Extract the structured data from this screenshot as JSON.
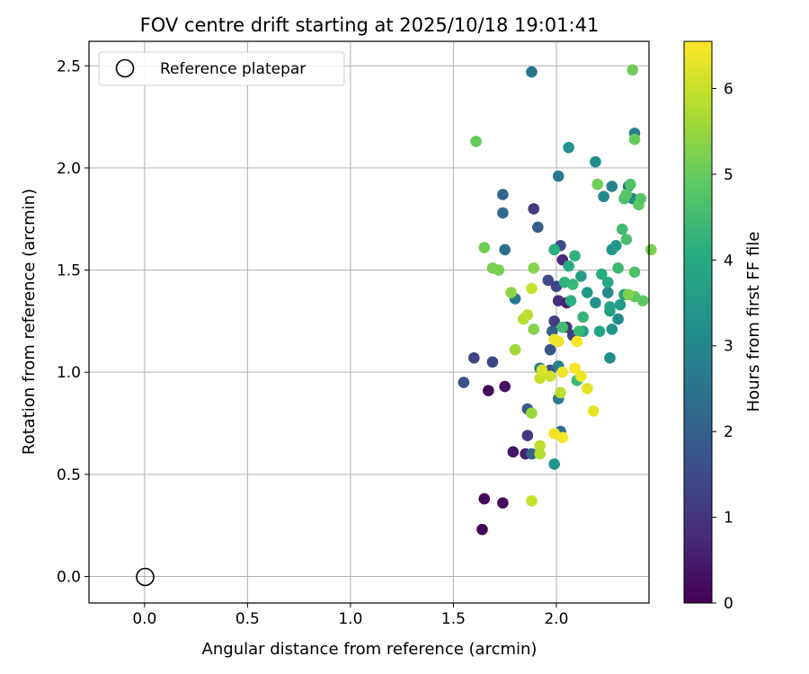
{
  "chart_data": {
    "type": "scatter",
    "title": "FOV centre drift starting at 2025/10/18 19:01:41",
    "xlabel": "Angular distance from reference (arcmin)",
    "ylabel": "Rotation from reference (arcmin)",
    "xlim": [
      -0.27,
      2.45
    ],
    "ylim": [
      -0.13,
      2.62
    ],
    "xticks": [
      0.0,
      0.5,
      1.0,
      1.5,
      2.0
    ],
    "xtick_labels": [
      "0.0",
      "0.5",
      "1.0",
      "1.5",
      "2.0"
    ],
    "yticks": [
      0.0,
      0.5,
      1.0,
      1.5,
      2.0,
      2.5
    ],
    "ytick_labels": [
      "0.0",
      "0.5",
      "1.0",
      "1.5",
      "2.0",
      "2.5"
    ],
    "grid": true,
    "legend": {
      "label": "Reference platepar",
      "location": "top-left",
      "marker": "open-circle"
    },
    "reference_point": {
      "x": 0.0,
      "y": 0.0
    },
    "colorbar": {
      "label": "Hours from first FF file",
      "min": 0,
      "max": 6.55,
      "colormap": "viridis",
      "ticks": [
        0,
        1,
        2,
        3,
        4,
        5,
        6
      ],
      "tick_labels": [
        "0",
        "1",
        "2",
        "3",
        "4",
        "5",
        "6"
      ]
    },
    "points": [
      {
        "x": 1.64,
        "y": 0.23,
        "t": 0.05
      },
      {
        "x": 1.65,
        "y": 0.38,
        "t": 0.15
      },
      {
        "x": 1.74,
        "y": 0.36,
        "t": 0.25
      },
      {
        "x": 1.67,
        "y": 0.91,
        "t": 0.2
      },
      {
        "x": 1.75,
        "y": 0.93,
        "t": 0.3
      },
      {
        "x": 1.79,
        "y": 0.61,
        "t": 0.4
      },
      {
        "x": 1.85,
        "y": 0.6,
        "t": 0.55
      },
      {
        "x": 1.86,
        "y": 0.69,
        "t": 1.0
      },
      {
        "x": 1.55,
        "y": 0.95,
        "t": 1.6
      },
      {
        "x": 1.6,
        "y": 1.07,
        "t": 1.3
      },
      {
        "x": 1.69,
        "y": 1.05,
        "t": 1.4
      },
      {
        "x": 1.88,
        "y": 0.6,
        "t": 2.1
      },
      {
        "x": 1.86,
        "y": 0.82,
        "t": 1.8
      },
      {
        "x": 1.89,
        "y": 1.8,
        "t": 1.1
      },
      {
        "x": 1.91,
        "y": 1.71,
        "t": 1.9
      },
      {
        "x": 1.74,
        "y": 1.87,
        "t": 2.2
      },
      {
        "x": 1.74,
        "y": 1.78,
        "t": 2.3
      },
      {
        "x": 1.75,
        "y": 1.6,
        "t": 2.4
      },
      {
        "x": 1.88,
        "y": 2.47,
        "t": 2.5
      },
      {
        "x": 1.8,
        "y": 1.36,
        "t": 2.6
      },
      {
        "x": 1.96,
        "y": 1.45,
        "t": 1.5
      },
      {
        "x": 1.97,
        "y": 1.11,
        "t": 1.7
      },
      {
        "x": 1.98,
        "y": 1.2,
        "t": 2.0
      },
      {
        "x": 1.99,
        "y": 1.25,
        "t": 1.2
      },
      {
        "x": 1.97,
        "y": 1.01,
        "t": 1.6
      },
      {
        "x": 2.0,
        "y": 1.42,
        "t": 1.3
      },
      {
        "x": 2.01,
        "y": 1.35,
        "t": 0.9
      },
      {
        "x": 2.03,
        "y": 1.55,
        "t": 0.8
      },
      {
        "x": 2.02,
        "y": 1.62,
        "t": 1.5
      },
      {
        "x": 2.05,
        "y": 1.34,
        "t": 0.6
      },
      {
        "x": 2.05,
        "y": 1.22,
        "t": 1.0
      },
      {
        "x": 2.08,
        "y": 1.18,
        "t": 1.2
      },
      {
        "x": 2.01,
        "y": 1.96,
        "t": 2.6
      },
      {
        "x": 2.06,
        "y": 2.1,
        "t": 3.3
      },
      {
        "x": 2.01,
        "y": 0.87,
        "t": 2.8
      },
      {
        "x": 2.01,
        "y": 1.03,
        "t": 2.9
      },
      {
        "x": 2.02,
        "y": 0.71,
        "t": 2.3
      },
      {
        "x": 1.99,
        "y": 0.55,
        "t": 3.4
      },
      {
        "x": 1.92,
        "y": 1.02,
        "t": 2.8
      },
      {
        "x": 2.19,
        "y": 2.03,
        "t": 3.2
      },
      {
        "x": 2.23,
        "y": 1.86,
        "t": 3.0
      },
      {
        "x": 2.27,
        "y": 1.91,
        "t": 2.9
      },
      {
        "x": 2.35,
        "y": 1.91,
        "t": 2.7
      },
      {
        "x": 2.38,
        "y": 2.17,
        "t": 2.8
      },
      {
        "x": 2.37,
        "y": 1.85,
        "t": 3.0
      },
      {
        "x": 2.19,
        "y": 1.34,
        "t": 3.3
      },
      {
        "x": 2.25,
        "y": 1.39,
        "t": 3.1
      },
      {
        "x": 2.26,
        "y": 1.07,
        "t": 3.2
      },
      {
        "x": 2.27,
        "y": 1.21,
        "t": 3.4
      },
      {
        "x": 2.3,
        "y": 1.26,
        "t": 3.2
      },
      {
        "x": 2.27,
        "y": 1.6,
        "t": 3.3
      },
      {
        "x": 2.12,
        "y": 1.47,
        "t": 3.6
      },
      {
        "x": 2.15,
        "y": 1.39,
        "t": 3.5
      },
      {
        "x": 2.26,
        "y": 1.3,
        "t": 3.6
      },
      {
        "x": 2.29,
        "y": 1.62,
        "t": 3.5
      },
      {
        "x": 2.31,
        "y": 1.33,
        "t": 3.6
      },
      {
        "x": 2.33,
        "y": 1.38,
        "t": 3.7
      },
      {
        "x": 2.13,
        "y": 1.2,
        "t": 3.7
      },
      {
        "x": 2.21,
        "y": 1.2,
        "t": 3.8
      },
      {
        "x": 2.25,
        "y": 1.44,
        "t": 3.9
      },
      {
        "x": 2.26,
        "y": 1.32,
        "t": 3.8
      },
      {
        "x": 2.22,
        "y": 1.48,
        "t": 4.0
      },
      {
        "x": 1.99,
        "y": 1.6,
        "t": 4.1
      },
      {
        "x": 2.06,
        "y": 1.52,
        "t": 4.0
      },
      {
        "x": 2.09,
        "y": 1.57,
        "t": 4.2
      },
      {
        "x": 2.07,
        "y": 1.35,
        "t": 4.1
      },
      {
        "x": 2.04,
        "y": 1.44,
        "t": 4.2
      },
      {
        "x": 2.08,
        "y": 1.43,
        "t": 4.3
      },
      {
        "x": 2.13,
        "y": 1.27,
        "t": 4.3
      },
      {
        "x": 2.1,
        "y": 0.96,
        "t": 4.4
      },
      {
        "x": 2.11,
        "y": 1.2,
        "t": 4.4
      },
      {
        "x": 2.03,
        "y": 1.22,
        "t": 4.5
      },
      {
        "x": 2.3,
        "y": 1.51,
        "t": 4.4
      },
      {
        "x": 2.32,
        "y": 1.7,
        "t": 4.5
      },
      {
        "x": 2.34,
        "y": 1.65,
        "t": 4.6
      },
      {
        "x": 2.33,
        "y": 1.85,
        "t": 4.6
      },
      {
        "x": 2.36,
        "y": 1.92,
        "t": 4.7
      },
      {
        "x": 2.34,
        "y": 1.87,
        "t": 4.8
      },
      {
        "x": 2.38,
        "y": 1.49,
        "t": 4.7
      },
      {
        "x": 2.38,
        "y": 1.37,
        "t": 4.9
      },
      {
        "x": 2.4,
        "y": 1.82,
        "t": 4.9
      },
      {
        "x": 2.41,
        "y": 1.85,
        "t": 4.8
      },
      {
        "x": 2.42,
        "y": 1.35,
        "t": 4.9
      },
      {
        "x": 2.37,
        "y": 2.48,
        "t": 5.1
      },
      {
        "x": 2.38,
        "y": 2.14,
        "t": 5.0
      },
      {
        "x": 2.2,
        "y": 1.92,
        "t": 5.1
      },
      {
        "x": 2.46,
        "y": 1.6,
        "t": 5.2
      },
      {
        "x": 2.35,
        "y": 1.38,
        "t": 5.3
      },
      {
        "x": 1.61,
        "y": 2.13,
        "t": 5.0
      },
      {
        "x": 1.65,
        "y": 1.61,
        "t": 5.1
      },
      {
        "x": 1.69,
        "y": 1.51,
        "t": 5.2
      },
      {
        "x": 1.72,
        "y": 1.5,
        "t": 5.2
      },
      {
        "x": 1.78,
        "y": 1.39,
        "t": 5.4
      },
      {
        "x": 1.89,
        "y": 1.51,
        "t": 5.3
      },
      {
        "x": 1.89,
        "y": 1.21,
        "t": 5.3
      },
      {
        "x": 1.8,
        "y": 1.11,
        "t": 5.6
      },
      {
        "x": 1.84,
        "y": 1.26,
        "t": 5.8
      },
      {
        "x": 1.86,
        "y": 1.28,
        "t": 5.9
      },
      {
        "x": 1.88,
        "y": 1.41,
        "t": 6.0
      },
      {
        "x": 1.88,
        "y": 0.8,
        "t": 5.5
      },
      {
        "x": 1.92,
        "y": 0.64,
        "t": 5.9
      },
      {
        "x": 1.92,
        "y": 0.6,
        "t": 5.8
      },
      {
        "x": 1.88,
        "y": 0.37,
        "t": 6.0
      },
      {
        "x": 1.92,
        "y": 0.97,
        "t": 6.0
      },
      {
        "x": 1.97,
        "y": 0.98,
        "t": 6.1
      },
      {
        "x": 2.02,
        "y": 0.9,
        "t": 5.9
      },
      {
        "x": 1.93,
        "y": 1.01,
        "t": 6.2
      },
      {
        "x": 2.01,
        "y": 1.15,
        "t": 6.3
      },
      {
        "x": 1.99,
        "y": 1.16,
        "t": 6.4
      },
      {
        "x": 1.99,
        "y": 0.7,
        "t": 6.4
      },
      {
        "x": 2.03,
        "y": 0.68,
        "t": 6.5
      },
      {
        "x": 2.03,
        "y": 1.0,
        "t": 6.4
      },
      {
        "x": 2.09,
        "y": 1.02,
        "t": 6.5
      },
      {
        "x": 2.12,
        "y": 0.98,
        "t": 6.4
      },
      {
        "x": 2.1,
        "y": 1.15,
        "t": 6.5
      },
      {
        "x": 2.15,
        "y": 0.92,
        "t": 6.3
      },
      {
        "x": 2.18,
        "y": 0.81,
        "t": 6.3
      }
    ]
  }
}
